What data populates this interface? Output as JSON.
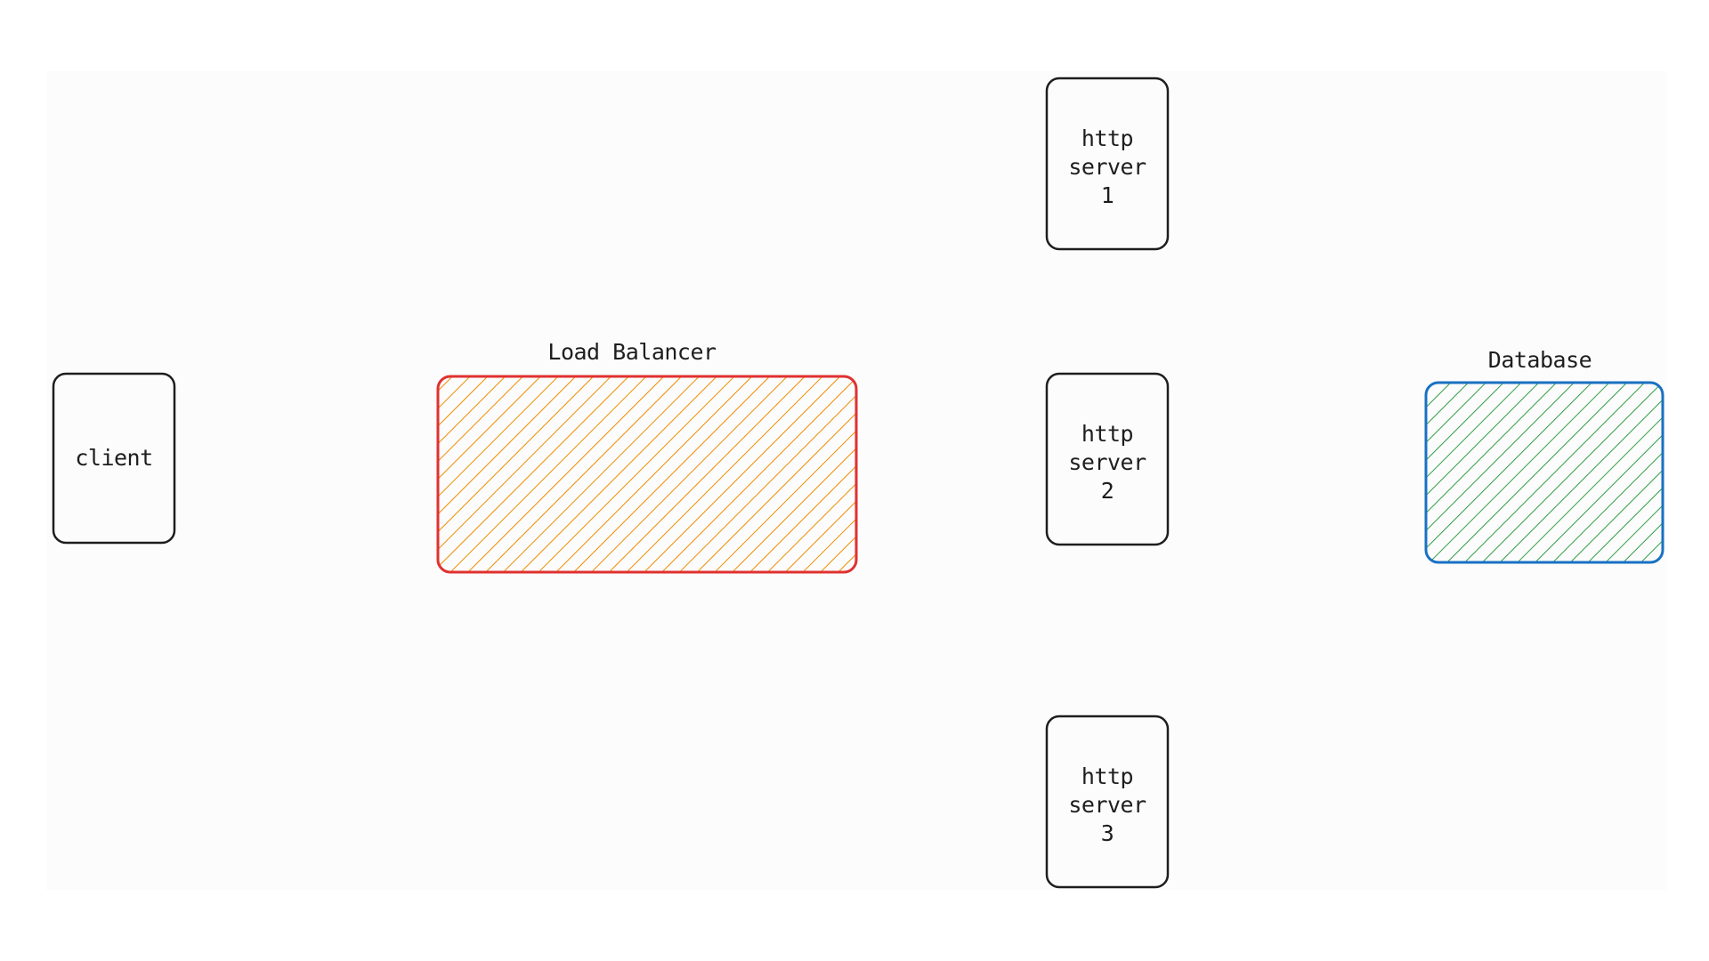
{
  "diagram": {
    "nodes": {
      "client": {
        "label": "client"
      },
      "load_balancer": {
        "title": "Load Balancer",
        "stroke": "#e03131",
        "hatch": "#f08c00"
      },
      "http_server_1": {
        "label": "http\nserver\n1"
      },
      "http_server_2": {
        "label": "http\nserver\n2"
      },
      "http_server_3": {
        "label": "http\nserver\n3"
      },
      "database": {
        "title": "Database",
        "stroke": "#1971c2",
        "hatch": "#2f9e44"
      }
    },
    "colors": {
      "ink": "#1e1e1e",
      "background": "#ffffff"
    }
  }
}
